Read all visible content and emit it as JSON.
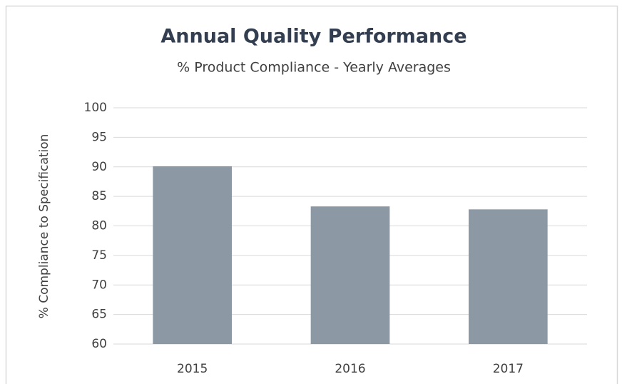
{
  "chart_data": {
    "type": "bar",
    "title": "Annual Quality Performance",
    "subtitle": "% Product Compliance - Yearly Averages",
    "y_label": "% Compliance to Specification",
    "categories": [
      "2015",
      "2016",
      "2017"
    ],
    "values": [
      90.1,
      83.3,
      82.8
    ],
    "color": "#8c99a5",
    "ylim": [
      60,
      100
    ],
    "yticks": [
      60,
      65,
      70,
      75,
      80,
      85,
      90,
      95,
      100
    ],
    "grid": true
  }
}
